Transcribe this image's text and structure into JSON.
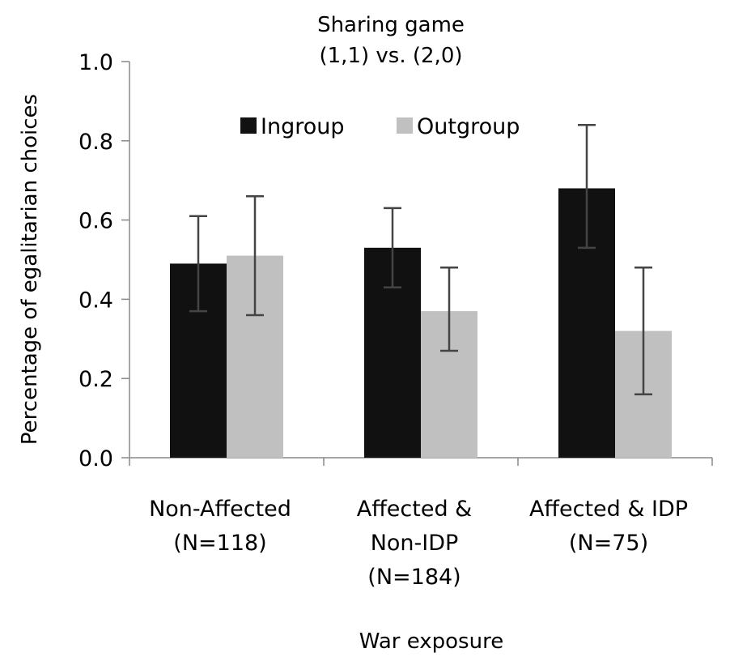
{
  "chart_data": {
    "type": "bar",
    "title": [
      "Sharing game",
      "(1,1) vs. (2,0)"
    ],
    "xlabel": "War exposure",
    "ylabel": "Percentage of egalitarian choices",
    "ylim": [
      0,
      1
    ],
    "yticks": [
      "0.0",
      "0.2",
      "0.4",
      "0.6",
      "0.8",
      "1.0"
    ],
    "categories": [
      [
        "Non-Affected",
        "(N=118)"
      ],
      [
        "Affected &",
        "Non-IDP",
        "(N=184)"
      ],
      [
        "Affected & IDP",
        "(N=75)"
      ]
    ],
    "series": [
      {
        "name": "Ingroup",
        "color": "#111111",
        "values": [
          0.49,
          0.53,
          0.68
        ],
        "err_low": [
          0.37,
          0.43,
          0.53
        ],
        "err_high": [
          0.61,
          0.63,
          0.84
        ]
      },
      {
        "name": "Outgroup",
        "color": "#c0c0c0",
        "values": [
          0.51,
          0.37,
          0.32
        ],
        "err_low": [
          0.36,
          0.27,
          0.16
        ],
        "err_high": [
          0.66,
          0.48,
          0.48
        ]
      }
    ],
    "legend": "top-center",
    "grid": false,
    "error_bar_color": "#444444"
  }
}
